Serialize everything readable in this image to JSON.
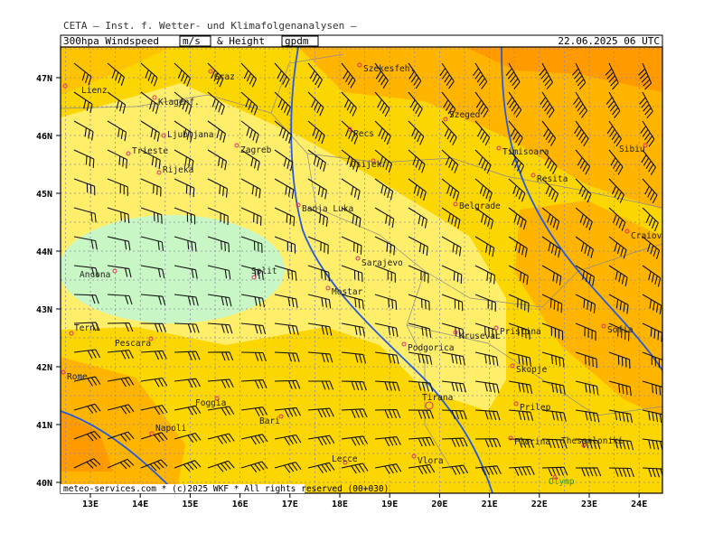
{
  "header": {
    "title": "CETA – Inst. f. Wetter- und Klimafolgenanalysen –",
    "field": "300hpa Windspeed",
    "unit1": "m/s",
    "mid": "& Height",
    "unit2": "gpdm",
    "datetime": "22.06.2025 06 UTC"
  },
  "axes": {
    "lat": [
      "47N",
      "46N",
      "45N",
      "44N",
      "43N",
      "42N",
      "41N",
      "40N"
    ],
    "lon": [
      "13E",
      "14E",
      "15E",
      "16E",
      "17E",
      "18E",
      "19E",
      "20E",
      "21E",
      "22E",
      "23E",
      "24E"
    ]
  },
  "cities": [
    "Lienz",
    "Graz",
    "Szekesfeh.",
    "Klagenf.",
    "Szeged",
    "Ljubljana",
    "Zagreb",
    "Pecs",
    "Trieste",
    "Timisoara",
    "Sibiu",
    "Rijeka",
    "Osijek",
    "Resita",
    "Banja Luka",
    "Belgrade",
    "Craiova",
    "Sarajevo",
    "Ancona",
    "Split",
    "Mostar",
    "Terni",
    "Pescara",
    "Krusevac",
    "Pristina",
    "Sofia",
    "Podgorica",
    "Rome",
    "Skopje",
    "Tirana",
    "Foggia",
    "Prilep",
    "Bari",
    "Napoli",
    "Florina",
    "Thessaloniki",
    "Lecce",
    "Vlora",
    "Olymp"
  ],
  "footer": "meteo-services.com * (c)2025 WKF * All rights reserved (00+030)"
}
